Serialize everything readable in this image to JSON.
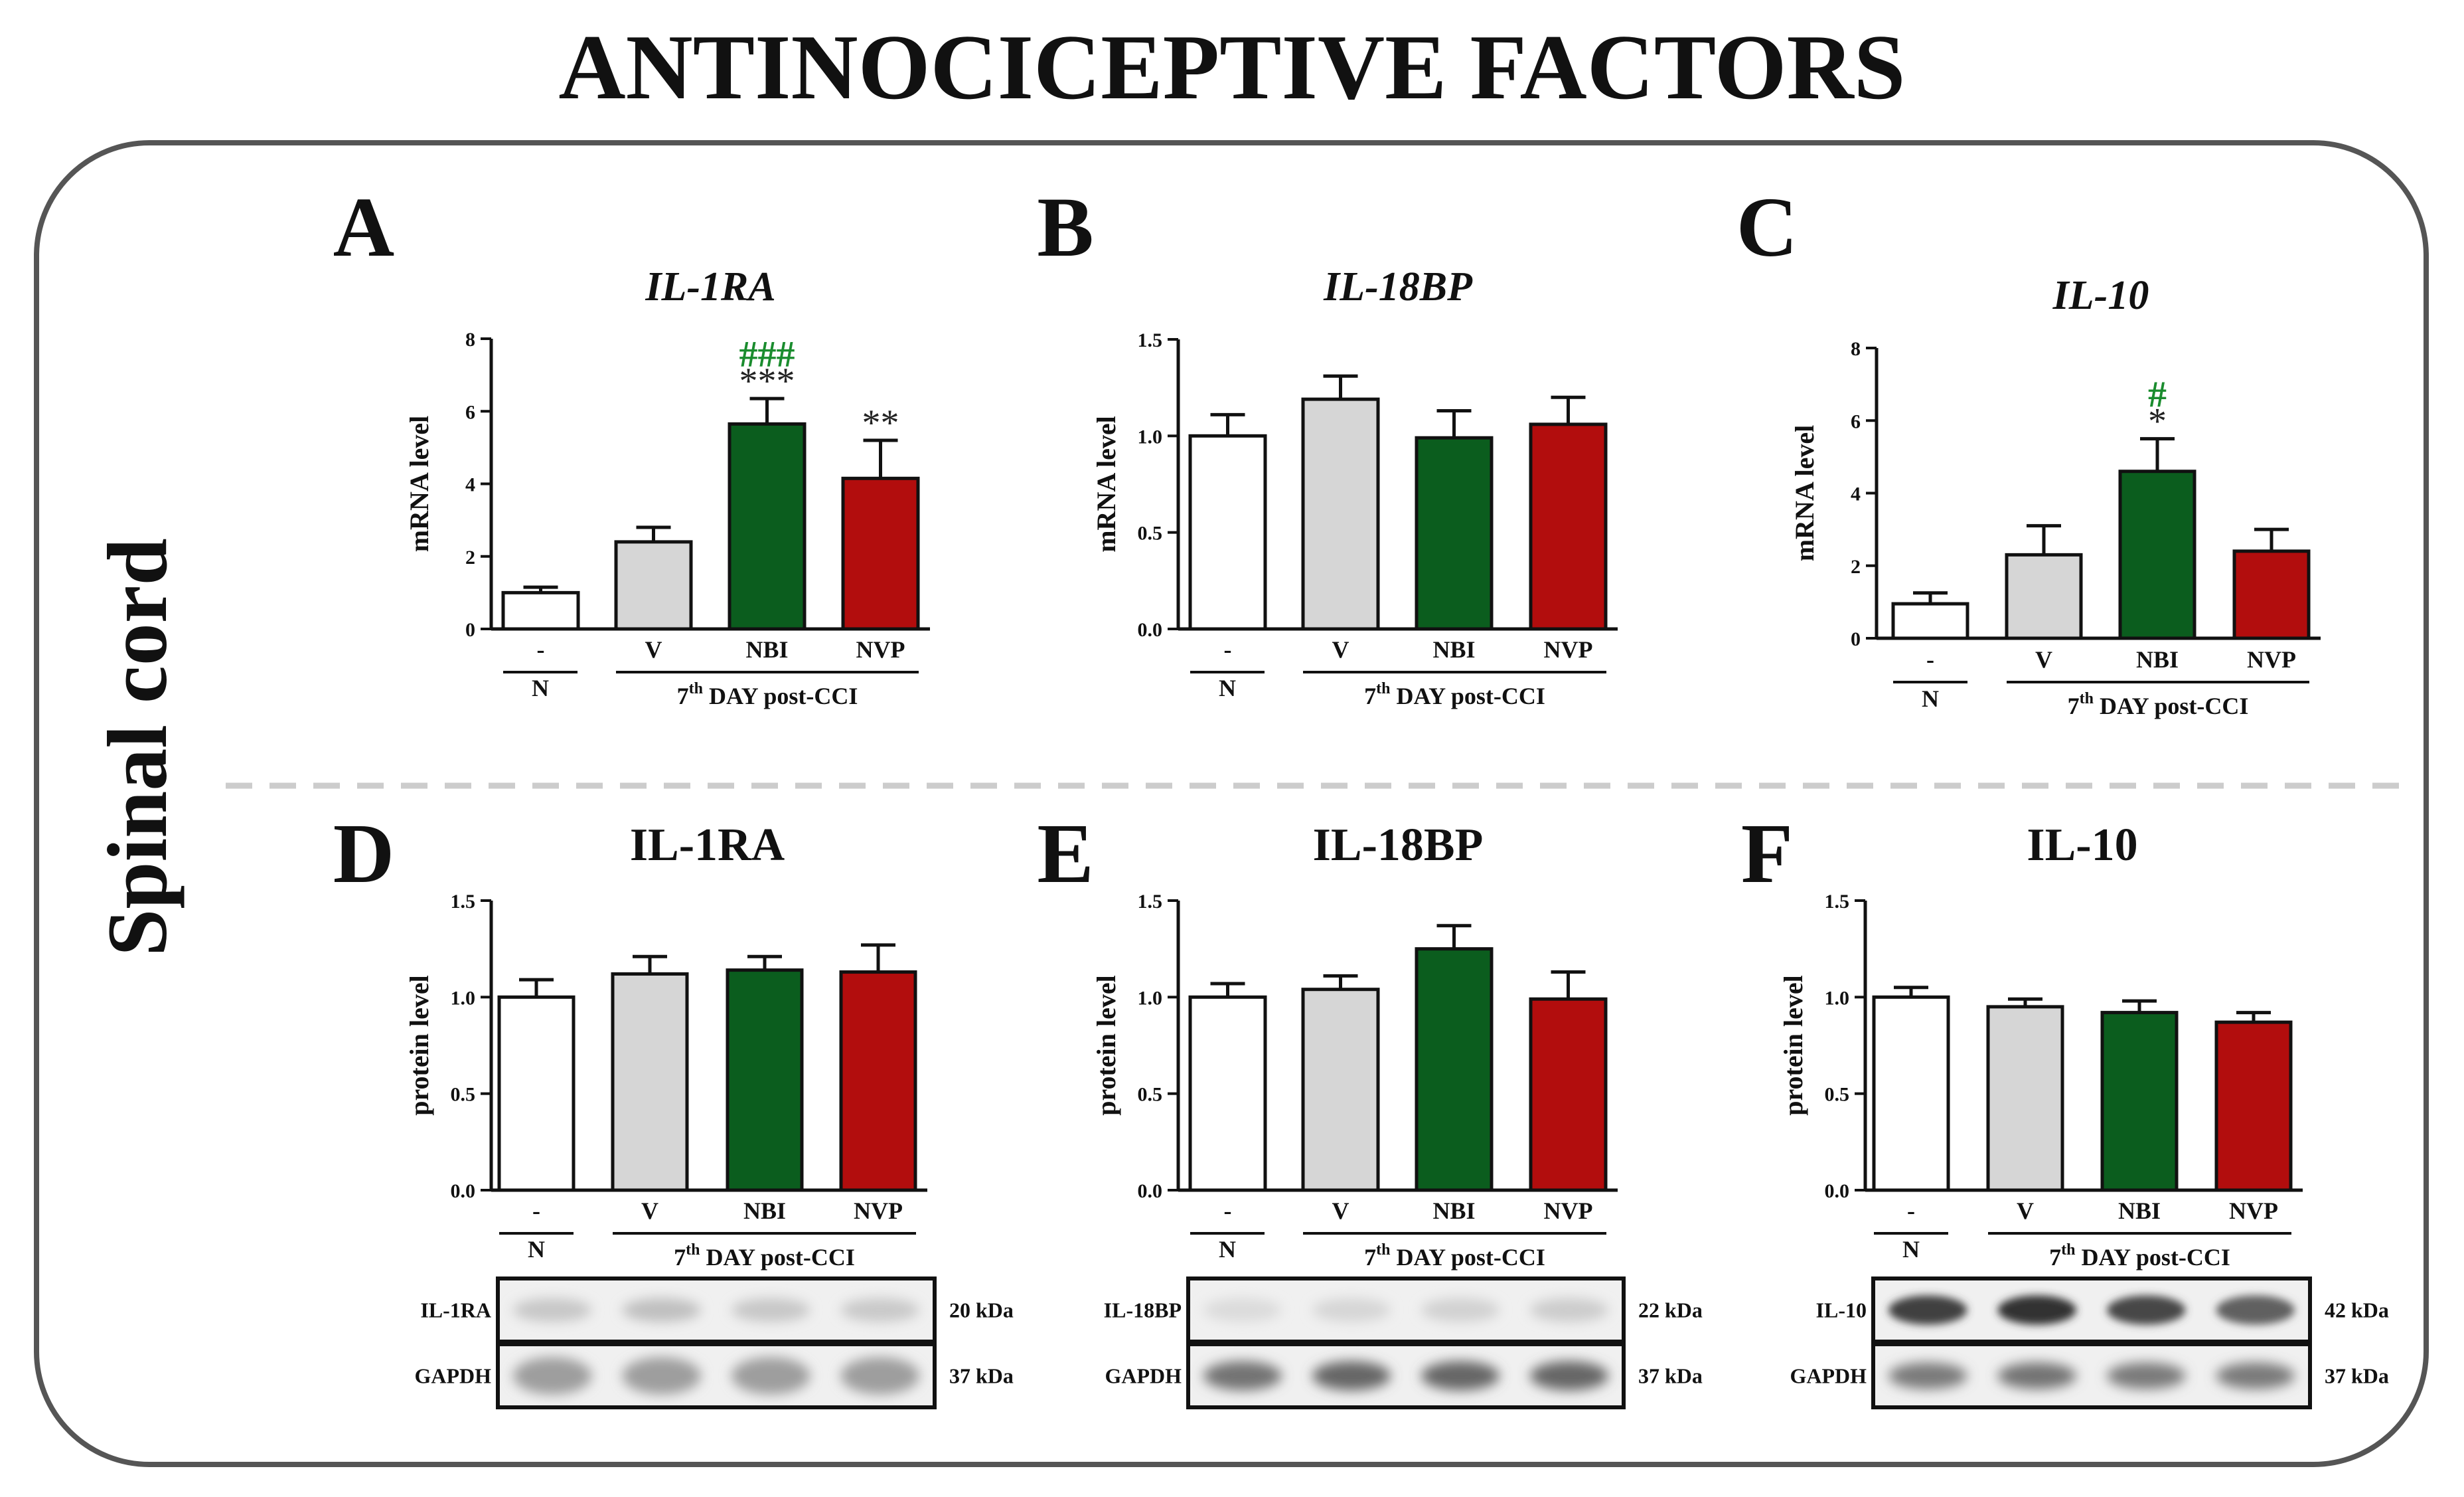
{
  "figure_title": "ANTINOCICEPTIVE FACTORS",
  "tissue_label": "Spinal cord",
  "colors": {
    "N": "#ffffff",
    "V": "#d6d6d6",
    "NBI": "#0b5d1e",
    "NVP": "#b20d0d",
    "hash_color": "#1a8c2e",
    "star_color": "#222222",
    "panel_border": "#555555",
    "divider": "#cccccc"
  },
  "group_labels": {
    "categories": [
      "-",
      "V",
      "NBI",
      "NVP"
    ],
    "control": "N",
    "post_cci_main": "7",
    "post_cci_sup": "th",
    "post_cci_rest": " DAY post-CCI"
  },
  "chart_data": [
    {
      "id": "A",
      "letter": "A",
      "type": "bar",
      "title": "IL-1RA",
      "title_italic": true,
      "ylabel": "mRNA level",
      "ylim": [
        0,
        8
      ],
      "yticks": [
        "0",
        "2",
        "4",
        "6",
        "8"
      ],
      "categories": [
        "-",
        "V",
        "NBI",
        "NVP"
      ],
      "values": [
        1.0,
        2.4,
        5.65,
        4.15
      ],
      "errors": [
        0.15,
        0.4,
        0.7,
        1.05
      ],
      "stars": [
        "",
        "",
        "***",
        "**"
      ],
      "hashes": [
        "",
        "",
        "###",
        ""
      ]
    },
    {
      "id": "B",
      "letter": "B",
      "type": "bar",
      "title": "IL-18BP",
      "title_italic": true,
      "ylabel": "mRNA level",
      "ylim": [
        0,
        1.5
      ],
      "yticks": [
        "0.0",
        "0.5",
        "1.0",
        "1.5"
      ],
      "categories": [
        "-",
        "V",
        "NBI",
        "NVP"
      ],
      "values": [
        1.0,
        1.19,
        0.99,
        1.06
      ],
      "errors": [
        0.11,
        0.12,
        0.14,
        0.14
      ],
      "stars": [
        "",
        "",
        "",
        ""
      ],
      "hashes": [
        "",
        "",
        "",
        ""
      ]
    },
    {
      "id": "C",
      "letter": "C",
      "type": "bar",
      "title": "IL-10",
      "title_italic": true,
      "ylabel": "mRNA level",
      "ylim": [
        0,
        8
      ],
      "yticks": [
        "0",
        "2",
        "4",
        "6",
        "8"
      ],
      "categories": [
        "-",
        "V",
        "NBI",
        "NVP"
      ],
      "values": [
        0.95,
        2.3,
        4.6,
        2.4
      ],
      "errors": [
        0.3,
        0.8,
        0.9,
        0.6
      ],
      "stars": [
        "",
        "",
        "*",
        ""
      ],
      "hashes": [
        "",
        "",
        "#",
        ""
      ]
    },
    {
      "id": "D",
      "letter": "D",
      "type": "bar",
      "title": "IL-1RA",
      "title_italic": false,
      "ylabel": "protein level",
      "ylim": [
        0,
        1.5
      ],
      "yticks": [
        "0.0",
        "0.5",
        "1.0",
        "1.5"
      ],
      "categories": [
        "-",
        "V",
        "NBI",
        "NVP"
      ],
      "values": [
        1.0,
        1.12,
        1.14,
        1.13
      ],
      "errors": [
        0.09,
        0.09,
        0.07,
        0.14
      ],
      "stars": [
        "",
        "",
        "",
        ""
      ],
      "hashes": [
        "",
        "",
        "",
        ""
      ],
      "blot": {
        "protein": "IL-1RA",
        "protein_kda": "20 kDa",
        "loading": "GAPDH",
        "loading_kda": "37 kDa"
      }
    },
    {
      "id": "E",
      "letter": "E",
      "type": "bar",
      "title": "IL-18BP",
      "title_italic": false,
      "ylabel": "protein level",
      "ylim": [
        0,
        1.5
      ],
      "yticks": [
        "0.0",
        "0.5",
        "1.0",
        "1.5"
      ],
      "categories": [
        "-",
        "V",
        "NBI",
        "NVP"
      ],
      "values": [
        1.0,
        1.04,
        1.25,
        0.99
      ],
      "errors": [
        0.07,
        0.07,
        0.12,
        0.14
      ],
      "stars": [
        "",
        "",
        "",
        ""
      ],
      "hashes": [
        "",
        "",
        "",
        ""
      ],
      "blot": {
        "protein": "IL-18BP",
        "protein_kda": "22 kDa",
        "loading": "GAPDH",
        "loading_kda": "37 kDa"
      }
    },
    {
      "id": "F",
      "letter": "F",
      "type": "bar",
      "title": "IL-10",
      "title_italic": false,
      "ylabel": "protein level",
      "ylim": [
        0,
        1.5
      ],
      "yticks": [
        "0.0",
        "0.5",
        "1.0",
        "1.5"
      ],
      "categories": [
        "-",
        "V",
        "NBI",
        "NVP"
      ],
      "values": [
        1.0,
        0.95,
        0.92,
        0.87
      ],
      "errors": [
        0.05,
        0.04,
        0.06,
        0.05
      ],
      "stars": [
        "",
        "",
        "",
        ""
      ],
      "hashes": [
        "",
        "",
        "",
        ""
      ],
      "blot": {
        "protein": "IL-10",
        "protein_kda": "42 kDa",
        "loading": "GAPDH",
        "loading_kda": "37 kDa"
      }
    }
  ]
}
